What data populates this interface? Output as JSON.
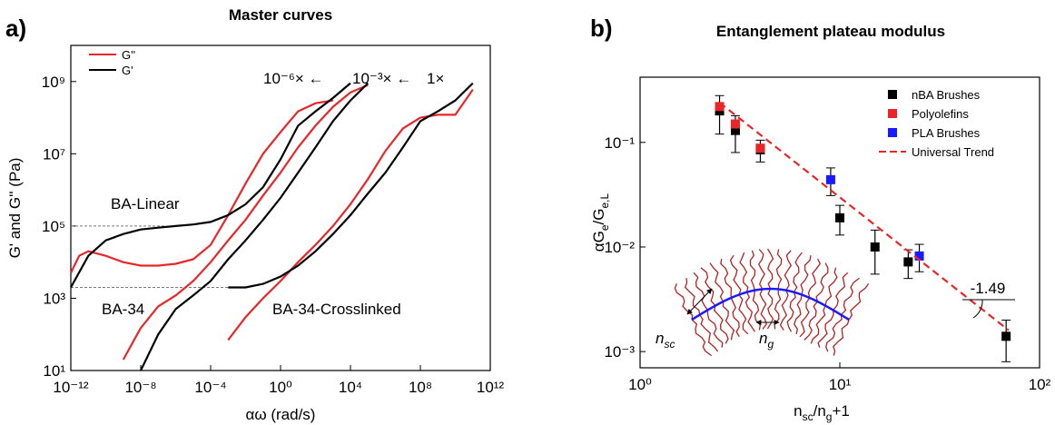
{
  "chart_data": [
    {
      "type": "line",
      "panel_label": "a)",
      "title": "Master curves",
      "x_label": "αω (rad/s)",
      "y_label": "G' and G'' (Pa)",
      "log_x": true,
      "log_y": true,
      "xlim": [
        1e-12,
        1000000000000.0
      ],
      "ylim": [
        10,
        10000000000.0
      ],
      "xticks": [
        {
          "value": 1e-12,
          "label": "10⁻¹²"
        },
        {
          "value": 1e-08,
          "label": "10⁻⁸"
        },
        {
          "value": 0.0001,
          "label": "10⁻⁴"
        },
        {
          "value": 1,
          "label": "10⁰"
        },
        {
          "value": 10000,
          "label": "10⁴"
        },
        {
          "value": 100000000.0,
          "label": "10⁸"
        },
        {
          "value": 1000000000000.0,
          "label": "10¹²"
        }
      ],
      "yticks": [
        {
          "value": 10,
          "label": "10¹"
        },
        {
          "value": 1000,
          "label": "10³"
        },
        {
          "value": 100000,
          "label": "10⁵"
        },
        {
          "value": 10000000.0,
          "label": "10⁷"
        },
        {
          "value": 1000000000.0,
          "label": "10⁹"
        }
      ],
      "legend": "upper left",
      "reference_lines": [
        100000,
        2000
      ],
      "annotations": [
        "BA-Linear",
        "BA-34",
        "BA-34-Crosslinked",
        "10⁻⁶× ←",
        "10⁻³× ←",
        "1×"
      ],
      "series": [
        {
          "name": "G''",
          "color": "#e8262a",
          "x": [
            1e-12,
            3e-12,
            1e-11,
            1e-10,
            1e-09,
            1e-08,
            1e-07,
            1e-06,
            1e-05,
            0.0001,
            0.001,
            0.01,
            0.1,
            1,
            10,
            100,
            1000
          ],
          "values": [
            5000,
            15000,
            20000,
            15000,
            10000,
            8000,
            8000,
            9000,
            12000,
            30000,
            200000,
            1500000,
            10000000,
            40000000,
            150000000,
            250000000,
            300000000
          ]
        },
        {
          "name": "G'",
          "color": "#000000",
          "x": [
            1e-12,
            1e-11,
            1e-10,
            1e-09,
            1e-08,
            1e-07,
            1e-06,
            1e-05,
            0.0001,
            0.001,
            0.01,
            0.1,
            1,
            10,
            100,
            1000,
            10000
          ],
          "values": [
            2000,
            15000,
            40000,
            60000,
            80000,
            90000,
            100000,
            110000,
            130000,
            200000,
            400000,
            1200000,
            7000000,
            60000000,
            150000000,
            350000000,
            900000000
          ]
        },
        {
          "name": "G''",
          "color": "#e8262a",
          "x": [
            1e-09,
            1e-08,
            1e-07,
            1e-06,
            1e-05,
            0.0001,
            0.001,
            0.01,
            0.1,
            1,
            10,
            100,
            1000,
            10000,
            100000
          ],
          "values": [
            20,
            150,
            600,
            1200,
            3000,
            10000,
            40000,
            150000,
            700000,
            3000000,
            15000000,
            60000000,
            200000000,
            500000000,
            800000000
          ]
        },
        {
          "name": "G'",
          "color": "#000000",
          "x": [
            1e-08,
            1e-07,
            1e-06,
            1e-05,
            0.0001,
            0.001,
            0.01,
            0.1,
            1,
            10,
            100,
            1000,
            10000,
            100000
          ],
          "values": [
            10,
            100,
            500,
            1200,
            3000,
            12000,
            40000,
            150000,
            600000,
            3000000,
            15000000,
            80000000,
            300000000,
            900000000
          ]
        },
        {
          "name": "G''",
          "color": "#e8262a",
          "x": [
            0.001,
            0.01,
            0.1,
            1,
            10,
            100,
            1000,
            10000,
            100000,
            1000000.0,
            10000000.0,
            100000000.0,
            1000000000.0,
            10000000000.0,
            100000000000.0
          ],
          "values": [
            70,
            300,
            1000,
            3000,
            10000,
            30000,
            100000,
            400000,
            2000000,
            12000000,
            50000000,
            100000000,
            120000000,
            120000000,
            600000000
          ]
        },
        {
          "name": "G'",
          "color": "#000000",
          "x": [
            0.001,
            0.01,
            0.1,
            1,
            10,
            100,
            1000,
            10000,
            100000,
            1000000.0,
            10000000.0,
            100000000.0,
            1000000000.0,
            10000000000.0,
            100000000000.0
          ],
          "values": [
            2000,
            2000,
            2500,
            4000,
            8000,
            20000,
            60000,
            200000,
            800000,
            3000000,
            15000000,
            80000000,
            150000000,
            300000000,
            900000000
          ]
        }
      ]
    },
    {
      "type": "scatter",
      "panel_label": "b)",
      "title": "Entanglement plateau modulus",
      "x_label": [
        "n",
        "sc",
        "/n",
        "g",
        "+1"
      ],
      "y_label": [
        "αG",
        "e",
        "/G",
        "e,L"
      ],
      "log_x": true,
      "log_y": true,
      "xlim": [
        1,
        100
      ],
      "ylim": [
        0.0007,
        0.42
      ],
      "xticks": [
        {
          "value": 1,
          "label": "10⁰"
        },
        {
          "value": 10,
          "label": "10¹"
        },
        {
          "value": 100,
          "label": "10²"
        }
      ],
      "yticks": [
        {
          "value": 0.001,
          "label": "10⁻³"
        },
        {
          "value": 0.01,
          "label": "10⁻²"
        },
        {
          "value": 0.1,
          "label": "10⁻¹"
        }
      ],
      "legend": "upper right",
      "annotations": [
        "-1.49"
      ],
      "schematic_labels": [
        [
          "n",
          "sc"
        ],
        [
          "n",
          "g"
        ]
      ],
      "series": [
        {
          "name": "nBA Brushes",
          "color": "#000000",
          "x": [
            2.5,
            3,
            4,
            10,
            15,
            22,
            68
          ],
          "values": [
            0.2,
            0.13,
            0.085,
            0.019,
            0.01,
            0.0072,
            0.0014
          ],
          "errors": [
            0.08,
            0.05,
            0.02,
            0.006,
            0.0045,
            0.0022,
            0.0006
          ]
        },
        {
          "name": "Polyolefins",
          "color": "#e8262a",
          "x": [
            2.5,
            3,
            4
          ],
          "values": [
            0.22,
            0.15,
            0.088
          ]
        },
        {
          "name": "PLA Brushes",
          "color": "#1a1aff",
          "x": [
            9,
            25
          ],
          "values": [
            0.044,
            0.0082
          ],
          "errors": [
            0.013,
            0.0024
          ]
        },
        {
          "name": "Universal Trend",
          "color": "#e8262a",
          "style": "dashed",
          "x": [
            2.5,
            70
          ],
          "values": [
            0.24,
            0.0016
          ]
        }
      ]
    }
  ]
}
